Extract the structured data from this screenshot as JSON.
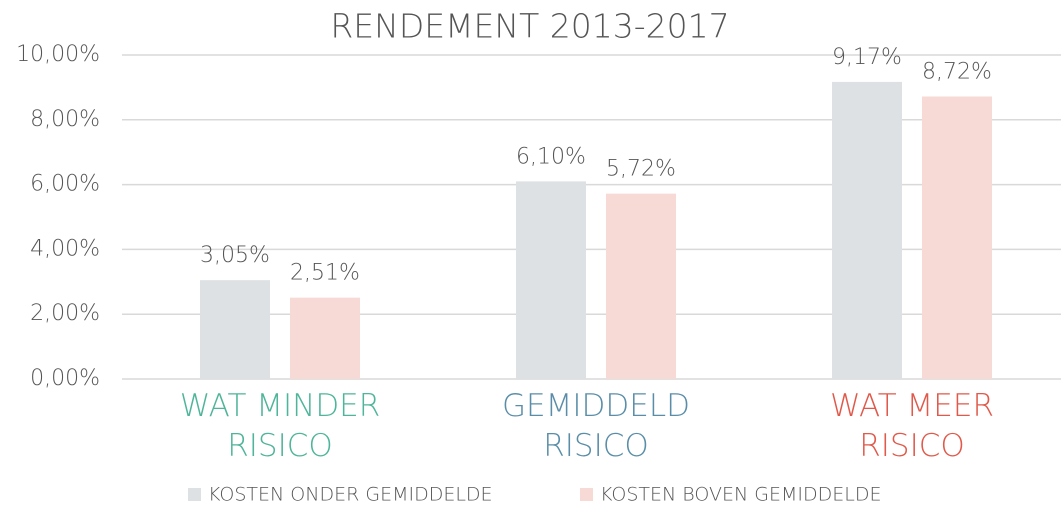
{
  "chart_data": {
    "type": "bar",
    "title": "RENDEMENT 2013-2017",
    "categories": [
      "WAT MINDER RISICO",
      "GEMIDDELD RISICO",
      "WAT MEER RISICO"
    ],
    "category_colors": [
      "#4fb59a",
      "#5a8ea8",
      "#e0594a"
    ],
    "series": [
      {
        "name": "KOSTEN ONDER GEMIDDELDE",
        "color": "#dde1e4",
        "values": [
          3.05,
          6.1,
          9.17
        ],
        "value_labels": [
          "3,05%",
          "6,10%",
          "9,17%"
        ]
      },
      {
        "name": "KOSTEN BOVEN GEMIDDELDE",
        "color": "#f7dad5",
        "values": [
          2.51,
          5.72,
          8.72
        ],
        "value_labels": [
          "2,51%",
          "5,72%",
          "8,72%"
        ]
      }
    ],
    "ylim": [
      0,
      10
    ],
    "yticks": [
      {
        "value": 0,
        "label": "0,00%"
      },
      {
        "value": 2,
        "label": "2,00%"
      },
      {
        "value": 4,
        "label": "4,00%"
      },
      {
        "value": 6,
        "label": "6,00%"
      },
      {
        "value": 8,
        "label": "8,00%"
      },
      {
        "value": 10,
        "label": "10,00%"
      }
    ],
    "grid": true,
    "legend": "bottom"
  }
}
